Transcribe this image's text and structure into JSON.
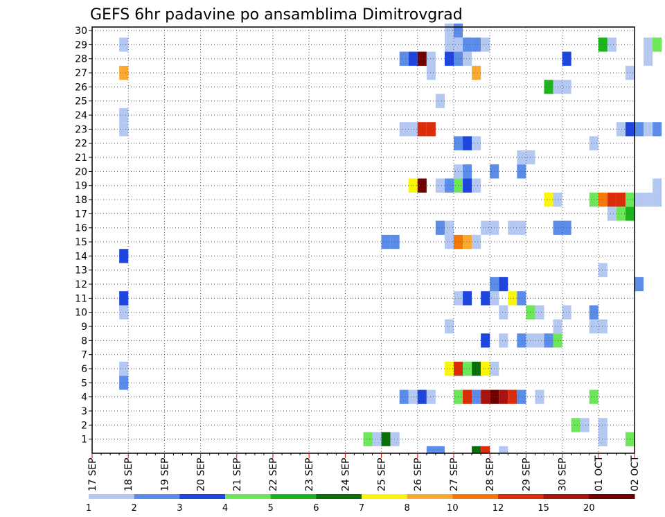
{
  "chart_data": {
    "type": "heatmap",
    "title": "GEFS 6hr padavine po ansamblima Dimitrovgrad",
    "xlabel": "",
    "ylabel": "",
    "x_tick_labels": [
      "17 SEP",
      "18 SEP",
      "19 SEP",
      "20 SEP",
      "21 SEP",
      "22 SEP",
      "23 SEP",
      "24 SEP",
      "25 SEP",
      "26 SEP",
      "27 SEP",
      "28 SEP",
      "29 SEP",
      "30 SEP",
      "01 OCT",
      "02 OCT"
    ],
    "x_time_range": [
      "17 SEP 00Z",
      "02 OCT 00Z"
    ],
    "time_step_hours": 6,
    "y_tick_labels": [
      "1",
      "2",
      "3",
      "4",
      "5",
      "6",
      "7",
      "8",
      "9",
      "10",
      "11",
      "12",
      "13",
      "14",
      "15",
      "16",
      "17",
      "18",
      "19",
      "20",
      "21",
      "22",
      "23",
      "24",
      "25",
      "26",
      "27",
      "28",
      "29",
      "30"
    ],
    "ylim": [
      0,
      30
    ],
    "grid": "dotted",
    "legend": {
      "placement": "bottom",
      "labels": [
        "1",
        "2",
        "3",
        "4",
        "5",
        "6",
        "7",
        "8",
        "10",
        "12",
        "15",
        "20"
      ],
      "colors": [
        "#b4c8f2",
        "#5a8ce8",
        "#1e46dc",
        "#6ee65a",
        "#1eb41e",
        "#0a6e0a",
        "#faf50a",
        "#faaa32",
        "#f5780a",
        "#dc2d0a",
        "#a5140f",
        "#6e0000"
      ]
    },
    "cells": [
      {
        "member": 1,
        "start": "24 SEP 12Z",
        "class": 4
      },
      {
        "member": 1,
        "start": "24 SEP 18Z",
        "class": 1
      },
      {
        "member": 1,
        "start": "25 SEP 00Z",
        "class": 6
      },
      {
        "member": 1,
        "start": "25 SEP 06Z",
        "class": 1
      },
      {
        "member": 1,
        "start": "01 OCT 00Z",
        "class": 1
      },
      {
        "member": 1,
        "start": "01 OCT 18Z",
        "class": 4
      },
      {
        "member": 2,
        "start": "30 SEP 06Z",
        "class": 4
      },
      {
        "member": 2,
        "start": "30 SEP 12Z",
        "class": 1
      },
      {
        "member": 2,
        "start": "01 OCT 00Z",
        "class": 1
      },
      {
        "member": 4,
        "start": "25 SEP 12Z",
        "class": 2
      },
      {
        "member": 4,
        "start": "25 SEP 18Z",
        "class": 1
      },
      {
        "member": 4,
        "start": "26 SEP 00Z",
        "class": 3
      },
      {
        "member": 4,
        "start": "26 SEP 06Z",
        "class": 1
      },
      {
        "member": 4,
        "start": "27 SEP 00Z",
        "class": 4
      },
      {
        "member": 4,
        "start": "27 SEP 06Z",
        "class": 10
      },
      {
        "member": 4,
        "start": "27 SEP 12Z",
        "class": 2
      },
      {
        "member": 4,
        "start": "27 SEP 18Z",
        "class": 11
      },
      {
        "member": 4,
        "start": "28 SEP 00Z",
        "class": 12
      },
      {
        "member": 4,
        "start": "28 SEP 06Z",
        "class": 11
      },
      {
        "member": 4,
        "start": "28 SEP 12Z",
        "class": 10
      },
      {
        "member": 4,
        "start": "28 SEP 18Z",
        "class": 2
      },
      {
        "member": 4,
        "start": "29 SEP 06Z",
        "class": 1
      },
      {
        "member": 4,
        "start": "30 SEP 18Z",
        "class": 4
      },
      {
        "member": 5,
        "start": "17 SEP 18Z",
        "class": 2
      },
      {
        "member": 6,
        "start": "17 SEP 18Z",
        "class": 1
      },
      {
        "member": 6,
        "start": "26 SEP 18Z",
        "class": 7
      },
      {
        "member": 6,
        "start": "27 SEP 00Z",
        "class": 10
      },
      {
        "member": 6,
        "start": "27 SEP 06Z",
        "class": 4
      },
      {
        "member": 6,
        "start": "27 SEP 12Z",
        "class": 6
      },
      {
        "member": 6,
        "start": "27 SEP 18Z",
        "class": 7
      },
      {
        "member": 6,
        "start": "28 SEP 00Z",
        "class": 1
      },
      {
        "member": 8,
        "start": "27 SEP 18Z",
        "class": 3
      },
      {
        "member": 8,
        "start": "28 SEP 06Z",
        "class": 1
      },
      {
        "member": 8,
        "start": "28 SEP 18Z",
        "class": 2
      },
      {
        "member": 8,
        "start": "29 SEP 00Z",
        "class": 1
      },
      {
        "member": 8,
        "start": "29 SEP 06Z",
        "class": 1
      },
      {
        "member": 8,
        "start": "29 SEP 12Z",
        "class": 2
      },
      {
        "member": 8,
        "start": "29 SEP 18Z",
        "class": 4
      },
      {
        "member": 9,
        "start": "26 SEP 18Z",
        "class": 1
      },
      {
        "member": 9,
        "start": "29 SEP 18Z",
        "class": 1
      },
      {
        "member": 9,
        "start": "30 SEP 18Z",
        "class": 1
      },
      {
        "member": 9,
        "start": "01 OCT 00Z",
        "class": 1
      },
      {
        "member": 10,
        "start": "17 SEP 18Z",
        "class": 1
      },
      {
        "member": 10,
        "start": "28 SEP 06Z",
        "class": 1
      },
      {
        "member": 10,
        "start": "29 SEP 00Z",
        "class": 4
      },
      {
        "member": 10,
        "start": "29 SEP 06Z",
        "class": 1
      },
      {
        "member": 10,
        "start": "30 SEP 00Z",
        "class": 1
      },
      {
        "member": 10,
        "start": "30 SEP 18Z",
        "class": 2
      },
      {
        "member": 11,
        "start": "17 SEP 18Z",
        "class": 3
      },
      {
        "member": 11,
        "start": "27 SEP 00Z",
        "class": 1
      },
      {
        "member": 11,
        "start": "27 SEP 06Z",
        "class": 3
      },
      {
        "member": 11,
        "start": "27 SEP 18Z",
        "class": 3
      },
      {
        "member": 11,
        "start": "28 SEP 00Z",
        "class": 1
      },
      {
        "member": 11,
        "start": "28 SEP 12Z",
        "class": 7
      },
      {
        "member": 11,
        "start": "28 SEP 18Z",
        "class": 2
      },
      {
        "member": 12,
        "start": "28 SEP 00Z",
        "class": 2
      },
      {
        "member": 12,
        "start": "28 SEP 06Z",
        "class": 3
      },
      {
        "member": 12,
        "start": "02 OCT 00Z",
        "class": 2
      },
      {
        "member": 13,
        "start": "01 OCT 00Z",
        "class": 1
      },
      {
        "member": 14,
        "start": "17 SEP 18Z",
        "class": 3
      },
      {
        "member": 15,
        "start": "25 SEP 00Z",
        "class": 2
      },
      {
        "member": 15,
        "start": "25 SEP 06Z",
        "class": 2
      },
      {
        "member": 15,
        "start": "26 SEP 18Z",
        "class": 1
      },
      {
        "member": 15,
        "start": "27 SEP 00Z",
        "class": 9
      },
      {
        "member": 15,
        "start": "27 SEP 06Z",
        "class": 8
      },
      {
        "member": 15,
        "start": "27 SEP 12Z",
        "class": 1
      },
      {
        "member": 16,
        "start": "26 SEP 12Z",
        "class": 2
      },
      {
        "member": 16,
        "start": "26 SEP 18Z",
        "class": 1
      },
      {
        "member": 16,
        "start": "27 SEP 18Z",
        "class": 1
      },
      {
        "member": 16,
        "start": "28 SEP 00Z",
        "class": 1
      },
      {
        "member": 16,
        "start": "28 SEP 12Z",
        "class": 1
      },
      {
        "member": 16,
        "start": "28 SEP 18Z",
        "class": 1
      },
      {
        "member": 16,
        "start": "29 SEP 18Z",
        "class": 2
      },
      {
        "member": 16,
        "start": "30 SEP 00Z",
        "class": 2
      },
      {
        "member": 17,
        "start": "01 OCT 06Z",
        "class": 1
      },
      {
        "member": 17,
        "start": "01 OCT 12Z",
        "class": 4
      },
      {
        "member": 17,
        "start": "01 OCT 18Z",
        "class": 5
      },
      {
        "member": 18,
        "start": "29 SEP 12Z",
        "class": 7
      },
      {
        "member": 18,
        "start": "29 SEP 18Z",
        "class": 1
      },
      {
        "member": 18,
        "start": "30 SEP 18Z",
        "class": 4
      },
      {
        "member": 18,
        "start": "01 OCT 00Z",
        "class": 9
      },
      {
        "member": 18,
        "start": "01 OCT 06Z",
        "class": 10
      },
      {
        "member": 18,
        "start": "01 OCT 12Z",
        "class": 10
      },
      {
        "member": 18,
        "start": "01 OCT 18Z",
        "class": 4
      },
      {
        "member": 18,
        "start": "02 OCT 00Z",
        "class": 1
      },
      {
        "member": 18,
        "start": "02 OCT 06Z",
        "class": 1
      },
      {
        "member": 18,
        "start": "02 OCT 12Z",
        "class": 1
      },
      {
        "member": 19,
        "start": "25 SEP 18Z",
        "class": 7
      },
      {
        "member": 19,
        "start": "26 SEP 00Z",
        "class": 12
      },
      {
        "member": 19,
        "start": "26 SEP 12Z",
        "class": 1
      },
      {
        "member": 19,
        "start": "26 SEP 18Z",
        "class": 2
      },
      {
        "member": 19,
        "start": "27 SEP 00Z",
        "class": 4
      },
      {
        "member": 19,
        "start": "27 SEP 06Z",
        "class": 3
      },
      {
        "member": 19,
        "start": "27 SEP 12Z",
        "class": 1
      },
      {
        "member": 19,
        "start": "02 OCT 12Z",
        "class": 1
      },
      {
        "member": 20,
        "start": "27 SEP 00Z",
        "class": 1
      },
      {
        "member": 20,
        "start": "27 SEP 06Z",
        "class": 2
      },
      {
        "member": 20,
        "start": "28 SEP 00Z",
        "class": 2
      },
      {
        "member": 20,
        "start": "28 SEP 18Z",
        "class": 2
      },
      {
        "member": 21,
        "start": "28 SEP 18Z",
        "class": 1
      },
      {
        "member": 21,
        "start": "29 SEP 00Z",
        "class": 1
      },
      {
        "member": 22,
        "start": "27 SEP 00Z",
        "class": 2
      },
      {
        "member": 22,
        "start": "27 SEP 06Z",
        "class": 3
      },
      {
        "member": 22,
        "start": "27 SEP 12Z",
        "class": 1
      },
      {
        "member": 22,
        "start": "30 SEP 18Z",
        "class": 1
      },
      {
        "member": 23,
        "start": "17 SEP 18Z",
        "class": 1
      },
      {
        "member": 23,
        "start": "25 SEP 12Z",
        "class": 1
      },
      {
        "member": 23,
        "start": "25 SEP 18Z",
        "class": 1
      },
      {
        "member": 23,
        "start": "26 SEP 00Z",
        "class": 10
      },
      {
        "member": 23,
        "start": "26 SEP 06Z",
        "class": 10
      },
      {
        "member": 23,
        "start": "01 OCT 12Z",
        "class": 1
      },
      {
        "member": 23,
        "start": "01 OCT 18Z",
        "class": 3
      },
      {
        "member": 23,
        "start": "02 OCT 00Z",
        "class": 2
      },
      {
        "member": 23,
        "start": "02 OCT 06Z",
        "class": 1
      },
      {
        "member": 23,
        "start": "02 OCT 12Z",
        "class": 2
      },
      {
        "member": 24,
        "start": "17 SEP 18Z",
        "class": 1
      },
      {
        "member": 25,
        "start": "26 SEP 12Z",
        "class": 1
      },
      {
        "member": 26,
        "start": "29 SEP 12Z",
        "class": 5
      },
      {
        "member": 26,
        "start": "29 SEP 18Z",
        "class": 1
      },
      {
        "member": 26,
        "start": "30 SEP 00Z",
        "class": 1
      },
      {
        "member": 27,
        "start": "17 SEP 18Z",
        "class": 8
      },
      {
        "member": 27,
        "start": "26 SEP 06Z",
        "class": 1
      },
      {
        "member": 27,
        "start": "27 SEP 12Z",
        "class": 8
      },
      {
        "member": 27,
        "start": "01 OCT 18Z",
        "class": 1
      },
      {
        "member": 28,
        "start": "25 SEP 12Z",
        "class": 2
      },
      {
        "member": 28,
        "start": "25 SEP 18Z",
        "class": 3
      },
      {
        "member": 28,
        "start": "26 SEP 00Z",
        "class": 12
      },
      {
        "member": 28,
        "start": "26 SEP 06Z",
        "class": 1
      },
      {
        "member": 28,
        "start": "26 SEP 18Z",
        "class": 3
      },
      {
        "member": 28,
        "start": "27 SEP 00Z",
        "class": 2
      },
      {
        "member": 28,
        "start": "27 SEP 06Z",
        "class": 1
      },
      {
        "member": 28,
        "start": "30 SEP 00Z",
        "class": 3
      },
      {
        "member": 28,
        "start": "02 OCT 06Z",
        "class": 1
      },
      {
        "member": 29,
        "start": "17 SEP 18Z",
        "class": 1
      },
      {
        "member": 29,
        "start": "26 SEP 18Z",
        "class": 1
      },
      {
        "member": 29,
        "start": "27 SEP 00Z",
        "class": 1
      },
      {
        "member": 29,
        "start": "27 SEP 06Z",
        "class": 2
      },
      {
        "member": 29,
        "start": "27 SEP 12Z",
        "class": 2
      },
      {
        "member": 29,
        "start": "27 SEP 18Z",
        "class": 1
      },
      {
        "member": 29,
        "start": "01 OCT 00Z",
        "class": 5
      },
      {
        "member": 29,
        "start": "01 OCT 06Z",
        "class": 1
      },
      {
        "member": 29,
        "start": "02 OCT 06Z",
        "class": 1
      },
      {
        "member": 29,
        "start": "02 OCT 12Z",
        "class": 4
      },
      {
        "member": 30,
        "start": "26 SEP 18Z",
        "class": 1
      },
      {
        "member": 30,
        "start": "27 SEP 00Z",
        "class": 2
      }
    ],
    "bottom_strip": [
      {
        "start": "26 SEP 06Z",
        "class": 2
      },
      {
        "start": "26 SEP 12Z",
        "class": 2
      },
      {
        "start": "27 SEP 12Z",
        "class": 6
      },
      {
        "start": "27 SEP 18Z",
        "class": 10
      },
      {
        "start": "28 SEP 06Z",
        "class": 1
      }
    ]
  }
}
